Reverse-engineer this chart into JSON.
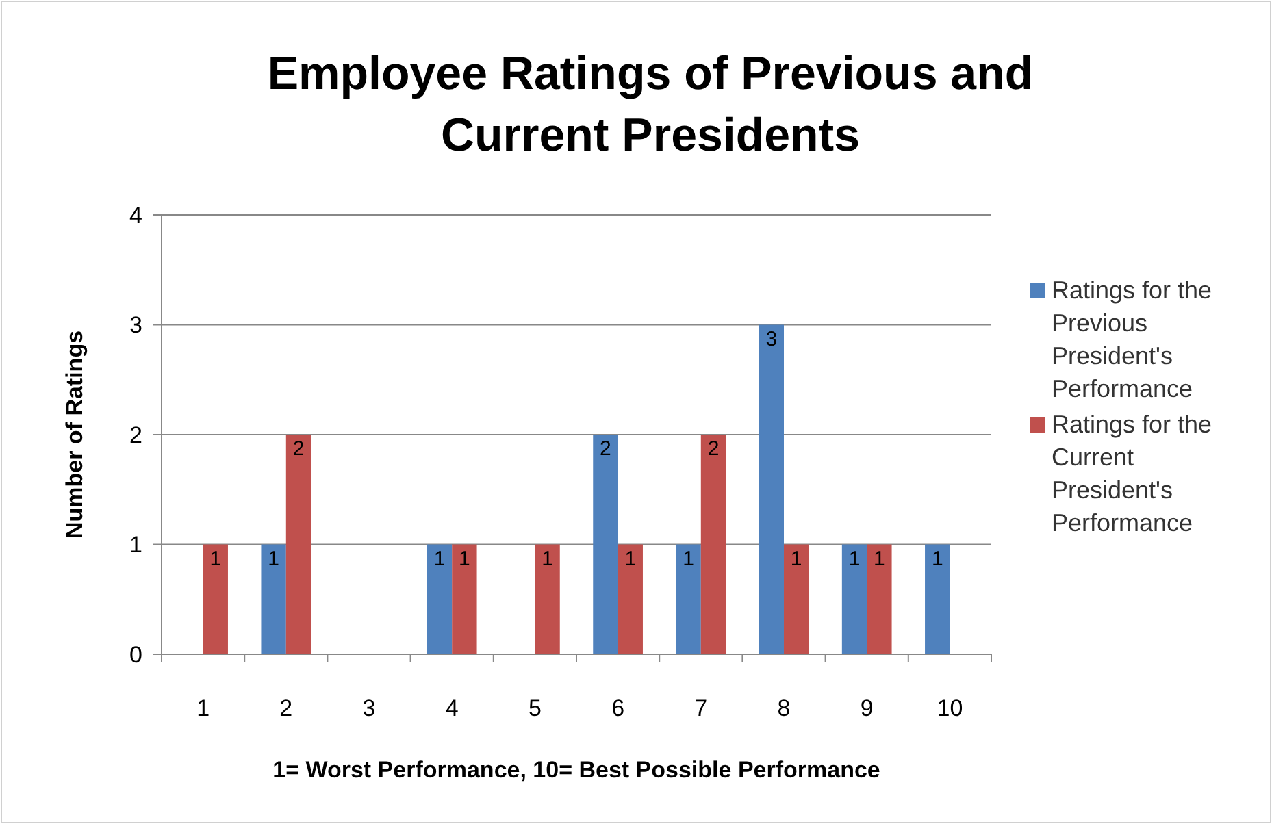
{
  "chart_data": {
    "type": "bar",
    "title": "Employee Ratings of Previous and Current Presidents",
    "xlabel": "1= Worst Performance, 10= Best Possible Performance",
    "ylabel": "Number of Ratings",
    "categories": [
      "1",
      "2",
      "3",
      "4",
      "5",
      "6",
      "7",
      "8",
      "9",
      "10"
    ],
    "series": [
      {
        "name": "Ratings for the Previous President's Performance",
        "color": "#4f81bd",
        "values": [
          0,
          1,
          0,
          1,
          0,
          2,
          1,
          3,
          1,
          1
        ],
        "value_labels": [
          null,
          "1",
          null,
          "1",
          null,
          "2",
          "1",
          "3",
          "1",
          "1"
        ]
      },
      {
        "name": "Ratings for the Current President's Performance",
        "color": "#c0504d",
        "values": [
          1,
          2,
          0,
          1,
          1,
          1,
          2,
          1,
          1,
          0
        ],
        "value_labels": [
          "1",
          "2",
          null,
          "1",
          "1",
          "1",
          "2",
          "1",
          "1",
          null
        ]
      }
    ],
    "ylim": [
      0,
      4
    ],
    "yticks": [
      0,
      1,
      2,
      3,
      4
    ],
    "grid": "y",
    "legend": "right"
  }
}
